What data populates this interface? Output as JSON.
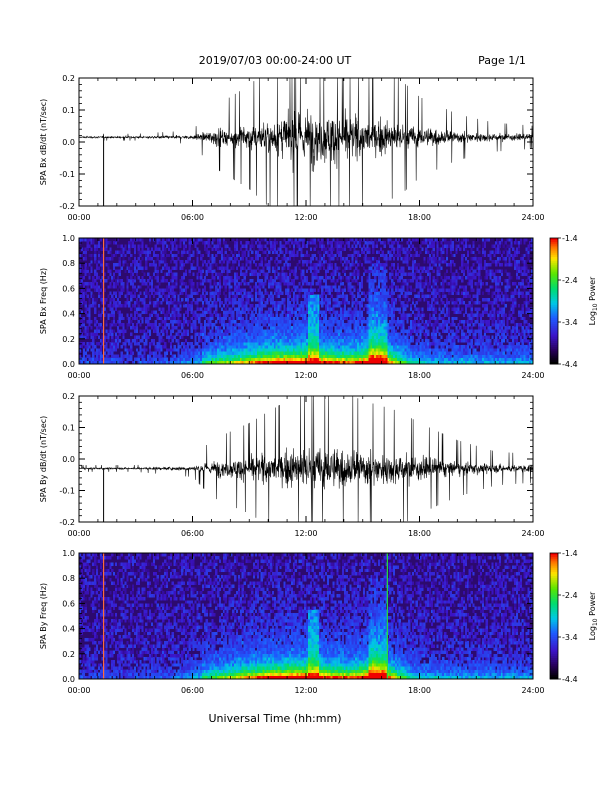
{
  "header": {
    "title": "2019/07/03  00:00-24:00 UT",
    "page": "Page 1/1"
  },
  "xaxis": {
    "label": "Universal Time (hh:mm)",
    "ticks": [
      "00:00",
      "06:00",
      "12:00",
      "18:00",
      "24:00"
    ],
    "range_hours": [
      0,
      24
    ]
  },
  "colorbar": {
    "label_main": "Log",
    "label_sub": "10",
    "label_tail": " Power",
    "ticks": [
      "-1.4",
      "-2.4",
      "-3.4",
      "-4.4"
    ],
    "range": [
      -4.4,
      -1.4
    ]
  },
  "chart_data": [
    {
      "type": "line",
      "ylabel": "SPA Bx dB/dt (nT/sec)",
      "ylim": [
        -0.2,
        0.2
      ],
      "yticks": [
        "0.2",
        "0.1",
        "0.0",
        "-0.1",
        "-0.2"
      ],
      "baseline": 0.015,
      "envelope_hours": [
        0,
        3,
        6,
        7,
        9,
        11,
        12,
        13,
        15,
        17,
        18,
        20,
        22,
        24
      ],
      "envelope_amp": [
        0.006,
        0.006,
        0.012,
        0.05,
        0.09,
        0.15,
        0.2,
        0.18,
        0.13,
        0.1,
        0.07,
        0.04,
        0.025,
        0.02
      ],
      "spike_hour": 1.3,
      "spike_value": -0.2
    },
    {
      "type": "heatmap",
      "ylabel": "SPA Bx Freq (Hz)",
      "ylim": [
        0.0,
        1.0
      ],
      "yticks": [
        "1.0",
        "0.8",
        "0.6",
        "0.4",
        "0.2",
        "0.0"
      ],
      "line_hours": [
        1.3
      ],
      "line_colors": [
        "#ff6a3a"
      ]
    },
    {
      "type": "line",
      "ylabel": "SPA By dB/dt (nT/sec)",
      "ylim": [
        -0.2,
        0.2
      ],
      "yticks": [
        "0.2",
        "0.1",
        "0.0",
        "-0.1",
        "-0.2"
      ],
      "baseline": -0.03,
      "envelope_hours": [
        0,
        3,
        6,
        7,
        9,
        11,
        12,
        13,
        15,
        17,
        18,
        20,
        22,
        24
      ],
      "envelope_amp": [
        0.006,
        0.006,
        0.015,
        0.05,
        0.08,
        0.12,
        0.16,
        0.15,
        0.12,
        0.1,
        0.08,
        0.05,
        0.03,
        0.025
      ],
      "spike_hour": 1.3,
      "spike_value": -0.2
    },
    {
      "type": "heatmap",
      "ylabel": "SPA By Freq (Hz)",
      "ylim": [
        0.0,
        1.0
      ],
      "yticks": [
        "1.0",
        "0.8",
        "0.6",
        "0.4",
        "0.2",
        "0.0"
      ],
      "line_hours": [
        1.3,
        16.3
      ],
      "line_colors": [
        "#ff6a3a",
        "#27e038"
      ]
    }
  ]
}
